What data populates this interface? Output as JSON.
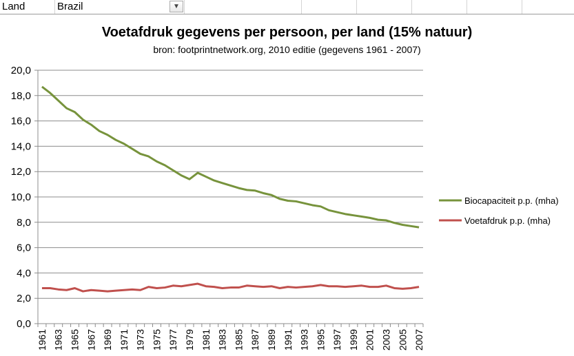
{
  "filter": {
    "label": "Land",
    "value": "Brazil",
    "icon": "filter-icon"
  },
  "chart_data": {
    "type": "line",
    "title": "Voetafdruk gegevens per persoon, per land (15% natuur)",
    "subtitle": "bron: footprintnetwork.org, 2010 editie (gegevens 1961 - 2007)",
    "ylim": [
      0,
      20
    ],
    "yticks": [
      "0,0",
      "2,0",
      "4,0",
      "6,0",
      "8,0",
      "10,0",
      "12,0",
      "14,0",
      "16,0",
      "18,0",
      "20,0"
    ],
    "grid": true,
    "legend": "right",
    "x": [
      1961,
      1962,
      1963,
      1964,
      1965,
      1966,
      1967,
      1968,
      1969,
      1970,
      1971,
      1972,
      1973,
      1974,
      1975,
      1976,
      1977,
      1978,
      1979,
      1980,
      1981,
      1982,
      1983,
      1984,
      1985,
      1986,
      1987,
      1988,
      1989,
      1990,
      1991,
      1992,
      1993,
      1994,
      1995,
      1996,
      1997,
      1998,
      1999,
      2000,
      2001,
      2002,
      2003,
      2004,
      2005,
      2006,
      2007
    ],
    "series": [
      {
        "name": "Biocapaciteit p.p. (mha)",
        "color": "#77933c",
        "values": [
          18.7,
          18.2,
          17.6,
          17.0,
          16.7,
          16.1,
          15.7,
          15.2,
          14.9,
          14.5,
          14.2,
          13.8,
          13.4,
          13.2,
          12.8,
          12.5,
          12.1,
          11.7,
          11.4,
          11.9,
          11.6,
          11.3,
          11.1,
          10.9,
          10.7,
          10.55,
          10.5,
          10.3,
          10.15,
          9.85,
          9.7,
          9.65,
          9.5,
          9.35,
          9.25,
          8.95,
          8.8,
          8.65,
          8.55,
          8.45,
          8.35,
          8.2,
          8.15,
          7.95,
          7.8,
          7.7,
          7.6
        ]
      },
      {
        "name": "Voetafdruk p.p. (mha)",
        "color": "#c0504d",
        "values": [
          2.8,
          2.8,
          2.7,
          2.65,
          2.8,
          2.55,
          2.65,
          2.6,
          2.55,
          2.6,
          2.65,
          2.7,
          2.65,
          2.9,
          2.8,
          2.85,
          3.0,
          2.95,
          3.05,
          3.15,
          2.95,
          2.9,
          2.8,
          2.85,
          2.85,
          3.0,
          2.95,
          2.9,
          2.95,
          2.8,
          2.9,
          2.85,
          2.9,
          2.95,
          3.05,
          2.95,
          2.95,
          2.9,
          2.95,
          3.0,
          2.9,
          2.9,
          3.0,
          2.8,
          2.75,
          2.8,
          2.9
        ]
      }
    ]
  }
}
